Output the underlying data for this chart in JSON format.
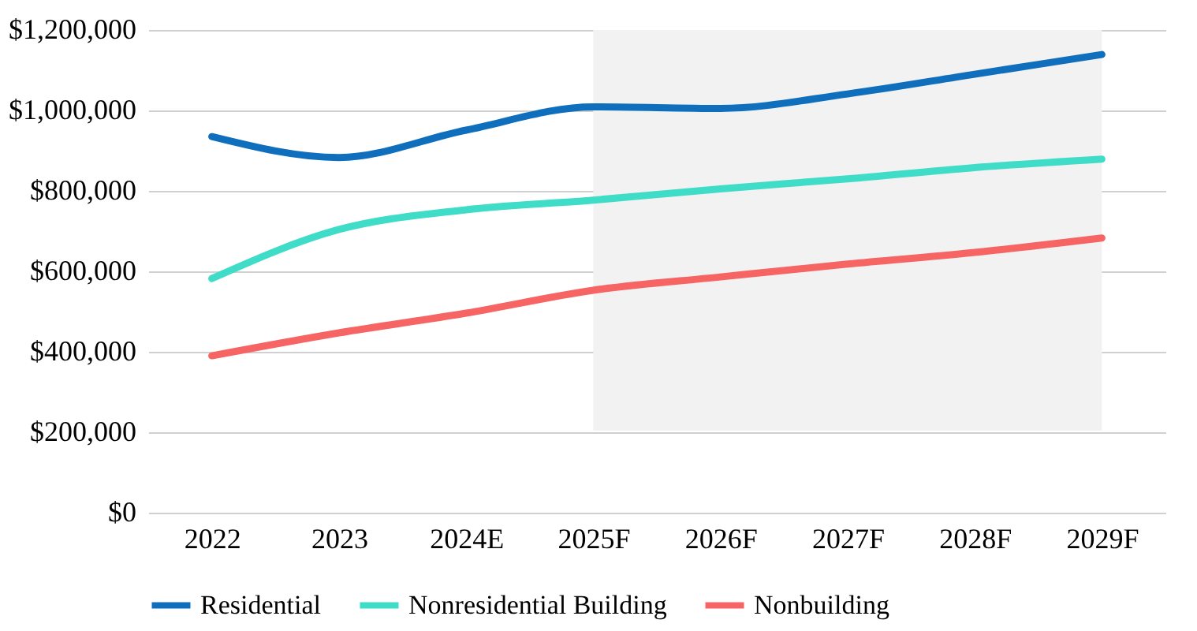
{
  "chart_data": {
    "type": "line",
    "categories": [
      "2022",
      "2023",
      "2024E",
      "2025F",
      "2026F",
      "2027F",
      "2028F",
      "2029F"
    ],
    "series": [
      {
        "name": "Residential",
        "color": "#0f6fbd",
        "values": [
          935000,
          883000,
          951000,
          1009000,
          1005000,
          1041000,
          1090000,
          1139000
        ]
      },
      {
        "name": "Nonresidential Building",
        "color": "#3fdcc8",
        "values": [
          582000,
          704000,
          753000,
          777000,
          805000,
          830000,
          858000,
          879000
        ]
      },
      {
        "name": "Nonbuilding",
        "color": "#f76464",
        "values": [
          390000,
          447000,
          496000,
          553000,
          586000,
          618000,
          647000,
          683000
        ]
      }
    ],
    "ylim": [
      0,
      1200000
    ],
    "yticks": [
      {
        "value": 0,
        "label": "$0"
      },
      {
        "value": 200000,
        "label": "$200,000"
      },
      {
        "value": 400000,
        "label": "$400,000"
      },
      {
        "value": 600000,
        "label": "$600,000"
      },
      {
        "value": 800000,
        "label": "$800,000"
      },
      {
        "value": 1000000,
        "label": "$1,000,000"
      },
      {
        "value": 1200000,
        "label": "$1,200,000"
      }
    ],
    "bands": [
      {
        "axis": "x",
        "from": "2025F",
        "to": "2029F",
        "color": "#f2f2f2"
      }
    ],
    "grid": "y",
    "legend": "bottom",
    "marker": "none",
    "line_style": "solid"
  }
}
